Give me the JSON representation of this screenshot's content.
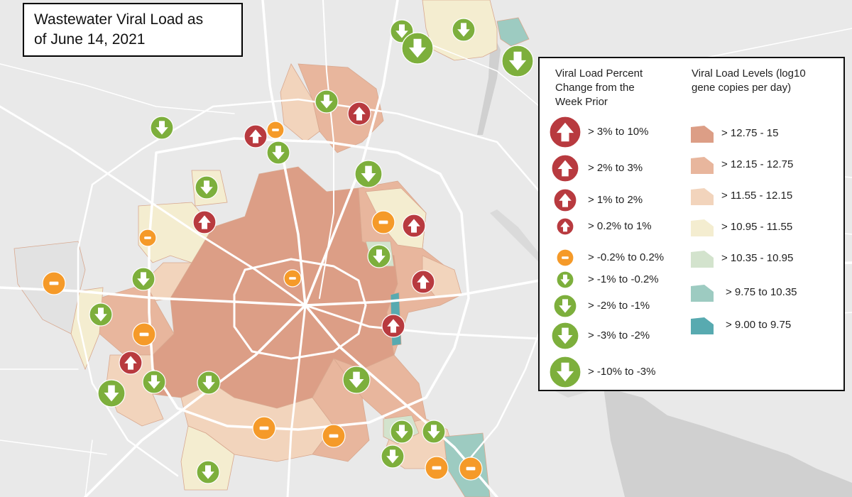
{
  "title": {
    "line1": "Wastewater Viral Load as",
    "line2": "of June 14, 2021"
  },
  "legend": {
    "change_title": [
      "Viral Load Percent",
      "Change from the",
      "Week Prior"
    ],
    "change_items": [
      {
        "label": "> 3% to 10%",
        "kind": "up",
        "size": "xl",
        "color": "#b83a3f"
      },
      {
        "label": "> 2% to 3%",
        "kind": "up",
        "size": "l",
        "color": "#b83a3f"
      },
      {
        "label": "> 1% to 2%",
        "kind": "up",
        "size": "m",
        "color": "#b83a3f"
      },
      {
        "label": "> 0.2% to 1%",
        "kind": "up",
        "size": "s",
        "color": "#b83a3f"
      },
      {
        "label": "> -0.2% to 0.2%",
        "kind": "flat",
        "size": "s",
        "color": "#f59a29"
      },
      {
        "label": "> -1% to -0.2%",
        "kind": "down",
        "size": "s",
        "color": "#7daf3c"
      },
      {
        "label": "> -2% to -1%",
        "kind": "down",
        "size": "m",
        "color": "#7daf3c"
      },
      {
        "label": "> -3% to -2%",
        "kind": "down",
        "size": "l",
        "color": "#7daf3c"
      },
      {
        "label": "> -10% to -3%",
        "kind": "down",
        "size": "xl",
        "color": "#7daf3c"
      }
    ],
    "level_title": [
      "Viral Load Levels (log10",
      "gene copies per day)"
    ],
    "level_items": [
      {
        "label": "> 12.75 - 15",
        "color": "#dc9e86"
      },
      {
        "label": "> 12.15 - 12.75",
        "color": "#e8b69d"
      },
      {
        "label": "> 11.55 - 12.15",
        "color": "#f2d4bc"
      },
      {
        "label": "> 10.95 - 11.55",
        "color": "#f4edd0"
      },
      {
        "label": "> 10.35 - 10.95",
        "color": "#d3e3cd"
      },
      {
        "label": "> 9.75 to 10.35",
        "color": "#9dcbc1"
      },
      {
        "label": "> 9.00 to 9.75",
        "color": "#58aab0"
      }
    ]
  },
  "colors": {
    "map_background": "#e9e9e9",
    "roads": "#ffffff",
    "water": "#d0d0d0",
    "up": "#b83a3f",
    "flat": "#f59a29",
    "down": "#7daf3c"
  }
}
